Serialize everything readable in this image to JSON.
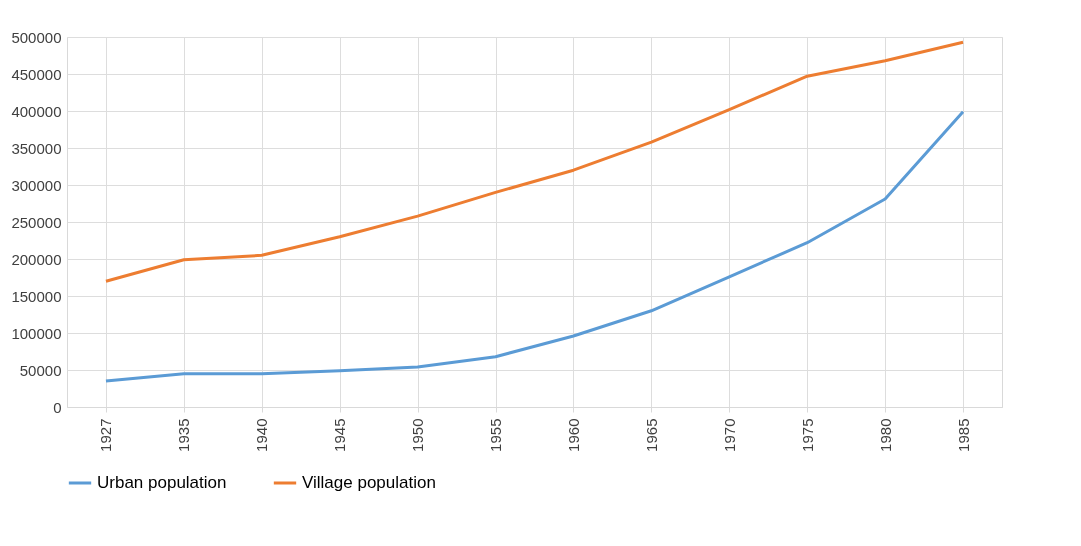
{
  "chart_data": {
    "type": "line",
    "categories": [
      "1927",
      "1935",
      "1940",
      "1945",
      "1950",
      "1955",
      "1960",
      "1965",
      "1970",
      "1975",
      "1980",
      "1985"
    ],
    "series": [
      {
        "name": "Urban population",
        "color": "#5b9bd5",
        "values": [
          35000,
          45000,
          45000,
          49000,
          54000,
          68000,
          96000,
          130000,
          176000,
          222000,
          281000,
          399000
        ]
      },
      {
        "name": "Village population",
        "color": "#ed7d31",
        "values": [
          170000,
          199000,
          205000,
          230000,
          258000,
          290000,
          320000,
          358000,
          402000,
          447000,
          468000,
          493000
        ]
      }
    ],
    "ylim": [
      0,
      500000
    ],
    "yticks": [
      0,
      50000,
      100000,
      150000,
      200000,
      250000,
      300000,
      350000,
      400000,
      450000,
      500000
    ],
    "grid": true,
    "legend": "bottom",
    "marker": "none",
    "line_style": "solid"
  }
}
